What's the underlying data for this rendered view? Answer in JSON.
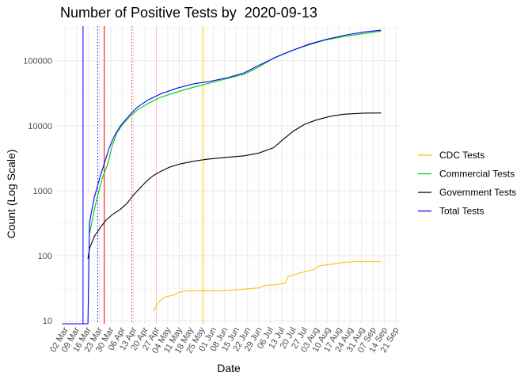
{
  "chart_data": {
    "type": "line",
    "title": "Number of Positive Tests by  2020-09-13",
    "xlabel": "Date",
    "ylabel": "Count (Log Scale)",
    "y_scale": "log10",
    "ylim": [
      9,
      340000
    ],
    "xlim": [
      "2020-02-26",
      "2020-09-24"
    ],
    "grid": true,
    "legend_position": "right",
    "y_ticks": [
      10,
      100,
      1000,
      10000,
      100000
    ],
    "y_tick_labels": [
      "10",
      "100",
      "1000",
      "10000",
      "100000"
    ],
    "x_ticks": [
      "2020-03-02",
      "2020-03-09",
      "2020-03-16",
      "2020-03-23",
      "2020-03-30",
      "2020-04-06",
      "2020-04-13",
      "2020-04-20",
      "2020-04-27",
      "2020-05-04",
      "2020-05-11",
      "2020-05-18",
      "2020-05-25",
      "2020-06-01",
      "2020-06-08",
      "2020-06-15",
      "2020-06-22",
      "2020-06-29",
      "2020-07-06",
      "2020-07-13",
      "2020-07-20",
      "2020-07-27",
      "2020-08-03",
      "2020-08-10",
      "2020-08-17",
      "2020-08-24",
      "2020-08-31",
      "2020-09-07",
      "2020-09-14",
      "2020-09-21"
    ],
    "x_tick_labels": [
      "02 Mar",
      "09 Mar",
      "16 Mar",
      "23 Mar",
      "30 Mar",
      "06 Apr",
      "13 Apr",
      "20 Apr",
      "27 Apr",
      "04 May",
      "11 May",
      "18 May",
      "25 May",
      "01 Jun",
      "08 Jun",
      "15 Jun",
      "22 Jun",
      "29 Jun",
      "06 Jul",
      "13 Jul",
      "20 Jul",
      "27 Jul",
      "03 Aug",
      "10 Aug",
      "17 Aug",
      "24 Aug",
      "31 Aug",
      "07 Sep",
      "14 Sep",
      "21 Sep"
    ],
    "series": [
      {
        "name": "CDC Tests",
        "color": "#FFC000",
        "x": [
          "2020-04-25",
          "2020-04-27",
          "2020-04-29",
          "2020-05-02",
          "2020-05-05",
          "2020-05-08",
          "2020-05-10",
          "2020-05-15",
          "2020-05-25",
          "2020-06-05",
          "2020-06-15",
          "2020-06-22",
          "2020-06-29",
          "2020-07-03",
          "2020-07-10",
          "2020-07-15",
          "2020-07-17",
          "2020-07-25",
          "2020-08-02",
          "2020-08-05",
          "2020-08-12",
          "2020-08-20",
          "2020-08-28",
          "2020-09-12"
        ],
        "y": [
          14,
          17,
          20,
          23,
          24,
          25,
          27,
          29,
          29,
          29,
          30,
          31,
          32,
          35,
          36,
          38,
          48,
          55,
          62,
          70,
          74,
          79,
          81,
          81
        ]
      },
      {
        "name": "Commercial Tests",
        "color": "#00CC00",
        "x": [
          "2020-03-17",
          "2020-03-19",
          "2020-03-22",
          "2020-03-25",
          "2020-03-28",
          "2020-03-31",
          "2020-04-03",
          "2020-04-07",
          "2020-04-11",
          "2020-04-16",
          "2020-04-22",
          "2020-04-29",
          "2020-05-08",
          "2020-05-18",
          "2020-05-28",
          "2020-06-08",
          "2020-06-20",
          "2020-06-29",
          "2020-07-08",
          "2020-07-18",
          "2020-07-28",
          "2020-08-08",
          "2020-08-20",
          "2020-09-01",
          "2020-09-12"
        ],
        "y": [
          220,
          400,
          850,
          1600,
          2500,
          5000,
          8000,
          11000,
          14000,
          18000,
          22000,
          27000,
          32000,
          38000,
          44000,
          52000,
          62000,
          80000,
          110000,
          140000,
          170000,
          205000,
          235000,
          260000,
          285000
        ]
      },
      {
        "name": "Government Tests",
        "color": "#000000",
        "x": [
          "2020-03-16",
          "2020-03-17",
          "2020-03-20",
          "2020-03-24",
          "2020-03-27",
          "2020-03-31",
          "2020-04-05",
          "2020-04-09",
          "2020-04-13",
          "2020-04-17",
          "2020-04-21",
          "2020-04-25",
          "2020-04-30",
          "2020-05-05",
          "2020-05-12",
          "2020-05-20",
          "2020-05-28",
          "2020-06-08",
          "2020-06-20",
          "2020-06-29",
          "2020-07-08",
          "2020-07-14",
          "2020-07-20",
          "2020-07-27",
          "2020-08-03",
          "2020-08-12",
          "2020-08-20",
          "2020-09-01",
          "2020-09-12"
        ],
        "y": [
          90,
          130,
          200,
          280,
          350,
          430,
          520,
          640,
          860,
          1100,
          1400,
          1700,
          2000,
          2300,
          2600,
          2850,
          3050,
          3250,
          3450,
          3800,
          4600,
          6200,
          8200,
          10500,
          12200,
          14000,
          15000,
          15600,
          15700
        ]
      },
      {
        "name": "Total Tests",
        "color": "#0000FF",
        "x": [
          "2020-02-29",
          "2020-03-16",
          "2020-03-17",
          "2020-03-18",
          "2020-03-20",
          "2020-03-23",
          "2020-03-26",
          "2020-03-29",
          "2020-04-01",
          "2020-04-05",
          "2020-04-10",
          "2020-04-15",
          "2020-04-22",
          "2020-04-30",
          "2020-05-10",
          "2020-05-20",
          "2020-05-30",
          "2020-06-10",
          "2020-06-20",
          "2020-06-29",
          "2020-07-10",
          "2020-07-20",
          "2020-07-30",
          "2020-08-10",
          "2020-08-22",
          "2020-09-01",
          "2020-09-12"
        ],
        "y": [
          9,
          9,
          320,
          450,
          800,
          1500,
          2600,
          4500,
          6800,
          10000,
          14000,
          19000,
          25000,
          31000,
          38000,
          44000,
          48000,
          55000,
          65000,
          85000,
          115000,
          145000,
          180000,
          215000,
          250000,
          275000,
          295000
        ]
      }
    ],
    "vertical_lines": [
      {
        "x": "2020-03-13",
        "color": "#0000FF",
        "style": "solid"
      },
      {
        "x": "2020-03-22",
        "color": "#0000FF",
        "style": "dotted"
      },
      {
        "x": "2020-03-26",
        "color": "#FF0000",
        "style": "solid"
      },
      {
        "x": "2020-04-12",
        "color": "#FF0000",
        "style": "dotted"
      },
      {
        "x": "2020-04-27",
        "color": "#FFC0CB",
        "style": "solid"
      },
      {
        "x": "2020-05-13",
        "color": "#FFC0CB",
        "style": "dotted"
      },
      {
        "x": "2020-05-26",
        "color": "#FFD700",
        "style": "solid"
      }
    ]
  }
}
